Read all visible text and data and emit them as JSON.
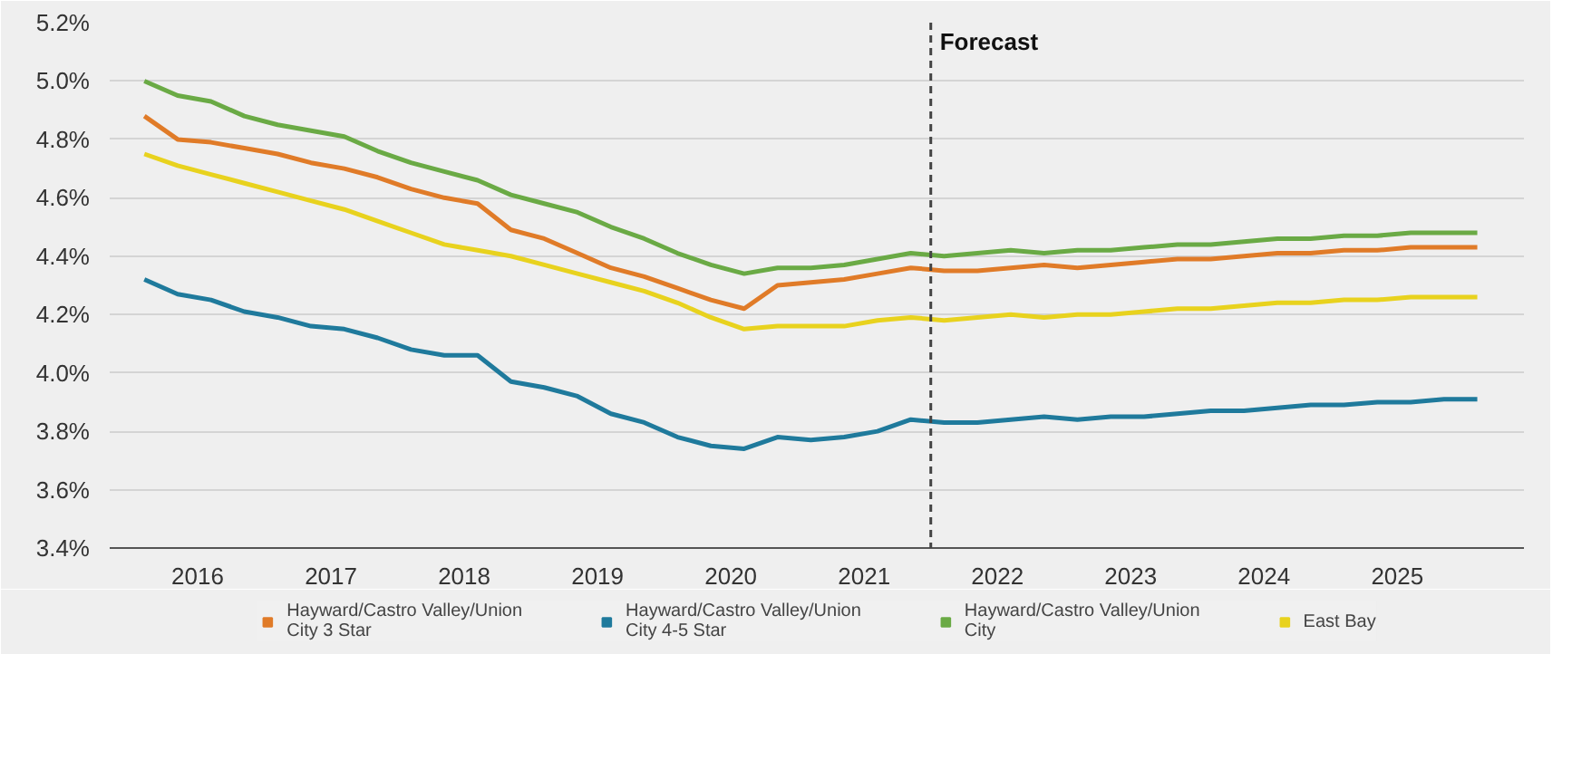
{
  "chart_data": {
    "type": "line",
    "x": [
      2016.1,
      2016.35,
      2016.6,
      2016.85,
      2017.1,
      2017.35,
      2017.6,
      2017.85,
      2018.1,
      2018.35,
      2018.6,
      2018.85,
      2019.1,
      2019.35,
      2019.6,
      2019.85,
      2020.1,
      2020.35,
      2020.6,
      2020.85,
      2021.1,
      2021.35,
      2021.6,
      2021.85,
      2022.1,
      2022.35,
      2022.6,
      2022.85,
      2023.1,
      2023.35,
      2023.6,
      2023.85,
      2024.1,
      2024.35,
      2024.6,
      2024.85,
      2025.1,
      2025.35,
      2025.6,
      2025.85,
      2026.1
    ],
    "series": [
      {
        "name": "Hayward/Castro Valley/Union City 3 Star",
        "color": "#e07b28",
        "values": [
          4.88,
          4.8,
          4.79,
          4.77,
          4.75,
          4.72,
          4.7,
          4.67,
          4.63,
          4.6,
          4.58,
          4.49,
          4.46,
          4.41,
          4.36,
          4.33,
          4.29,
          4.25,
          4.22,
          4.3,
          4.31,
          4.32,
          4.34,
          4.36,
          4.35,
          4.35,
          4.36,
          4.37,
          4.36,
          4.37,
          4.38,
          4.39,
          4.39,
          4.4,
          4.41,
          4.41,
          4.42,
          4.42,
          4.43,
          4.43,
          4.43
        ]
      },
      {
        "name": "Hayward/Castro Valley/Union City 4-5 Star",
        "color": "#1f7a9c",
        "values": [
          4.32,
          4.27,
          4.25,
          4.21,
          4.19,
          4.16,
          4.15,
          4.12,
          4.08,
          4.06,
          4.06,
          3.97,
          3.95,
          3.92,
          3.86,
          3.83,
          3.78,
          3.75,
          3.74,
          3.78,
          3.77,
          3.78,
          3.8,
          3.84,
          3.83,
          3.83,
          3.84,
          3.85,
          3.84,
          3.85,
          3.85,
          3.86,
          3.87,
          3.87,
          3.88,
          3.89,
          3.89,
          3.9,
          3.9,
          3.91,
          3.91
        ]
      },
      {
        "name": "Hayward/Castro Valley/Union City",
        "color": "#6aaa45",
        "values": [
          5.0,
          4.95,
          4.93,
          4.88,
          4.85,
          4.83,
          4.81,
          4.76,
          4.72,
          4.69,
          4.66,
          4.61,
          4.58,
          4.55,
          4.5,
          4.46,
          4.41,
          4.37,
          4.34,
          4.36,
          4.36,
          4.37,
          4.39,
          4.41,
          4.4,
          4.41,
          4.42,
          4.41,
          4.42,
          4.42,
          4.43,
          4.44,
          4.44,
          4.45,
          4.46,
          4.46,
          4.47,
          4.47,
          4.48,
          4.48,
          4.48
        ]
      },
      {
        "name": "East Bay",
        "color": "#e8d21e",
        "values": [
          4.75,
          4.71,
          4.68,
          4.65,
          4.62,
          4.59,
          4.56,
          4.52,
          4.48,
          4.44,
          4.42,
          4.4,
          4.37,
          4.34,
          4.31,
          4.28,
          4.24,
          4.19,
          4.15,
          4.16,
          4.16,
          4.16,
          4.18,
          4.19,
          4.18,
          4.19,
          4.2,
          4.19,
          4.2,
          4.2,
          4.21,
          4.22,
          4.22,
          4.23,
          4.24,
          4.24,
          4.25,
          4.25,
          4.26,
          4.26,
          4.26
        ]
      }
    ],
    "xlim": [
      2015.84,
      2026.45
    ],
    "xticks": [
      {
        "value": 2016.5,
        "label": "2016"
      },
      {
        "value": 2017.5,
        "label": "2017"
      },
      {
        "value": 2018.5,
        "label": "2018"
      },
      {
        "value": 2019.5,
        "label": "2019"
      },
      {
        "value": 2020.5,
        "label": "2020"
      },
      {
        "value": 2021.5,
        "label": "2021"
      },
      {
        "value": 2022.5,
        "label": "2022"
      },
      {
        "value": 2023.5,
        "label": "2023"
      },
      {
        "value": 2024.5,
        "label": "2024"
      },
      {
        "value": 2025.5,
        "label": "2025"
      }
    ],
    "ylim": [
      3.4,
      5.2
    ],
    "yticks": [
      {
        "value": 3.4,
        "label": "3.4%"
      },
      {
        "value": 3.6,
        "label": "3.6%"
      },
      {
        "value": 3.8,
        "label": "3.8%"
      },
      {
        "value": 4.0,
        "label": "4.0%"
      },
      {
        "value": 4.2,
        "label": "4.2%"
      },
      {
        "value": 4.4,
        "label": "4.4%"
      },
      {
        "value": 4.6,
        "label": "4.6%"
      },
      {
        "value": 4.8,
        "label": "4.8%"
      },
      {
        "value": 5.0,
        "label": "5.0%"
      },
      {
        "value": 5.2,
        "label": "5.2%"
      }
    ],
    "ref_lines": [
      {
        "axis": "x",
        "value": 2022.0,
        "label": "Forecast",
        "line_style": "dashed",
        "color": "#444444"
      }
    ],
    "grid": "y",
    "legend": "bottom",
    "marker": "none",
    "line_style": "solid"
  }
}
